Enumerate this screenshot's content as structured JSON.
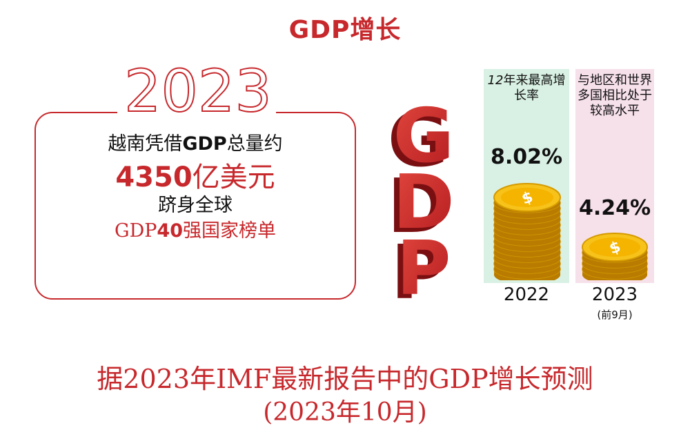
{
  "title_prefix": "GDP",
  "title_suffix": "增长",
  "year_big": "2023",
  "info": {
    "line1_a": "越南凭借",
    "line1_b": "GDP",
    "line1_c": "总量约",
    "line2_a": "4350",
    "line2_b": "亿美元",
    "line3": "跻身全球",
    "line4_a": "GDP",
    "line4_b": "40",
    "line4_c": "强国家榜单"
  },
  "gdp_letters": [
    "G",
    "D",
    "P"
  ],
  "growth": [
    {
      "label_a": "12",
      "label_b": "年来最高增长率",
      "percent": "8.02%",
      "year": "2022",
      "period": "",
      "value": 8.02
    },
    {
      "label": "与地区和世界多国相比处于较高水平",
      "percent": "4.24%",
      "year": "2023",
      "period": "(前9月)",
      "value": 4.24
    }
  ],
  "bottom": {
    "title": "据2023年IMF最新报告中的GDP增长预测",
    "subtitle": "(2023年10月)"
  },
  "colors": {
    "accent_red": "#c7282c",
    "panel_green": "#d9f1e4",
    "panel_pink": "#f6e0ea",
    "coin_gold": "#f2b705"
  },
  "icons": [
    "dollar-coin-icon"
  ]
}
